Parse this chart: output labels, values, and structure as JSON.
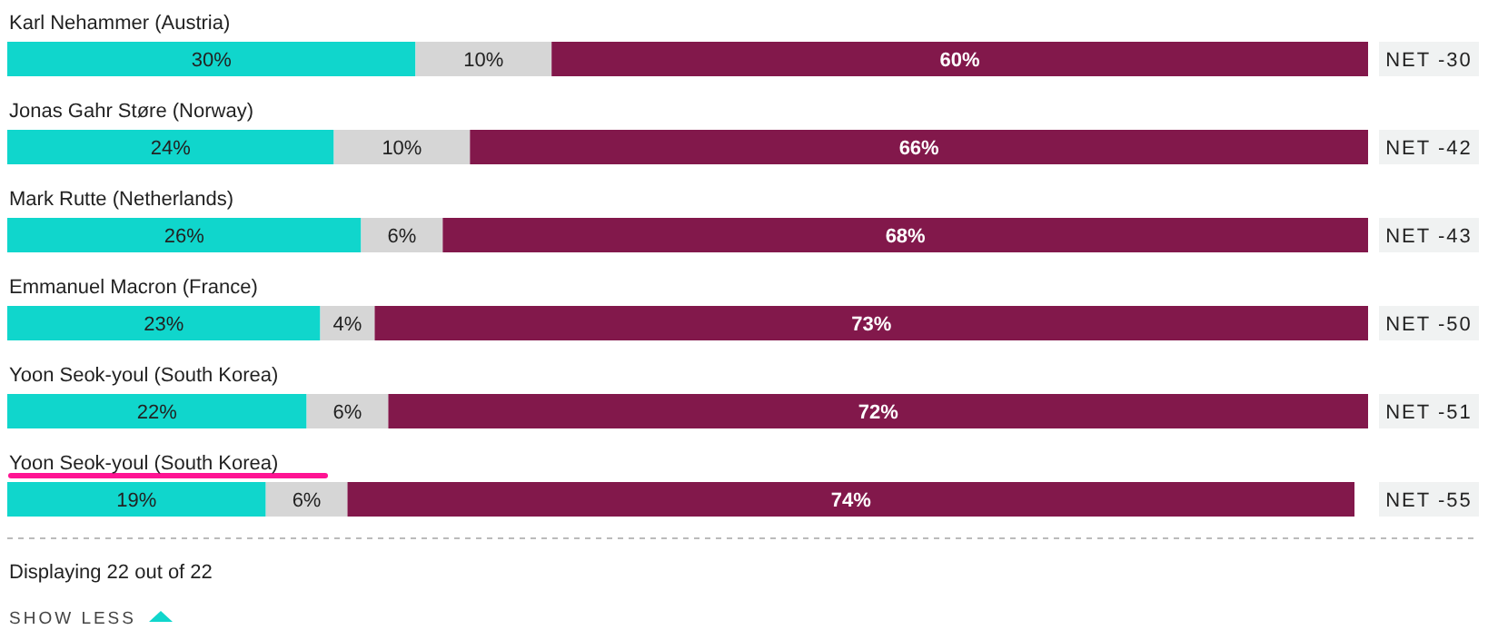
{
  "chart_data": {
    "type": "bar",
    "orientation": "horizontal",
    "stacked": true,
    "categories": [
      "Karl Nehammer (Austria)",
      "Jonas Gahr Støre (Norway)",
      "Mark Rutte (Netherlands)",
      "Emmanuel Macron (France)",
      "Yoon Seok-youl (South Korea)",
      "Yoon Seok-youl (South Korea)"
    ],
    "series": [
      {
        "color": "#10d6cc",
        "values": [
          30,
          24,
          26,
          23,
          22,
          19
        ],
        "value_labels": [
          "30%",
          "24%",
          "26%",
          "23%",
          "22%",
          "19%"
        ]
      },
      {
        "color": "#d6d6d6",
        "values": [
          10,
          10,
          6,
          4,
          6,
          6
        ],
        "value_labels": [
          "10%",
          "10%",
          "6%",
          "4%",
          "6%",
          "6%"
        ]
      },
      {
        "color": "#82184b",
        "values": [
          60,
          66,
          68,
          73,
          72,
          74
        ],
        "value_labels": [
          "60%",
          "66%",
          "68%",
          "73%",
          "72%",
          "74%"
        ]
      }
    ],
    "annotations": [
      "NET -30",
      "NET -42",
      "NET -43",
      "NET -50",
      "NET -51",
      "NET -55",
      "Displaying 22 out of 22",
      "SHOW LESS"
    ]
  }
}
